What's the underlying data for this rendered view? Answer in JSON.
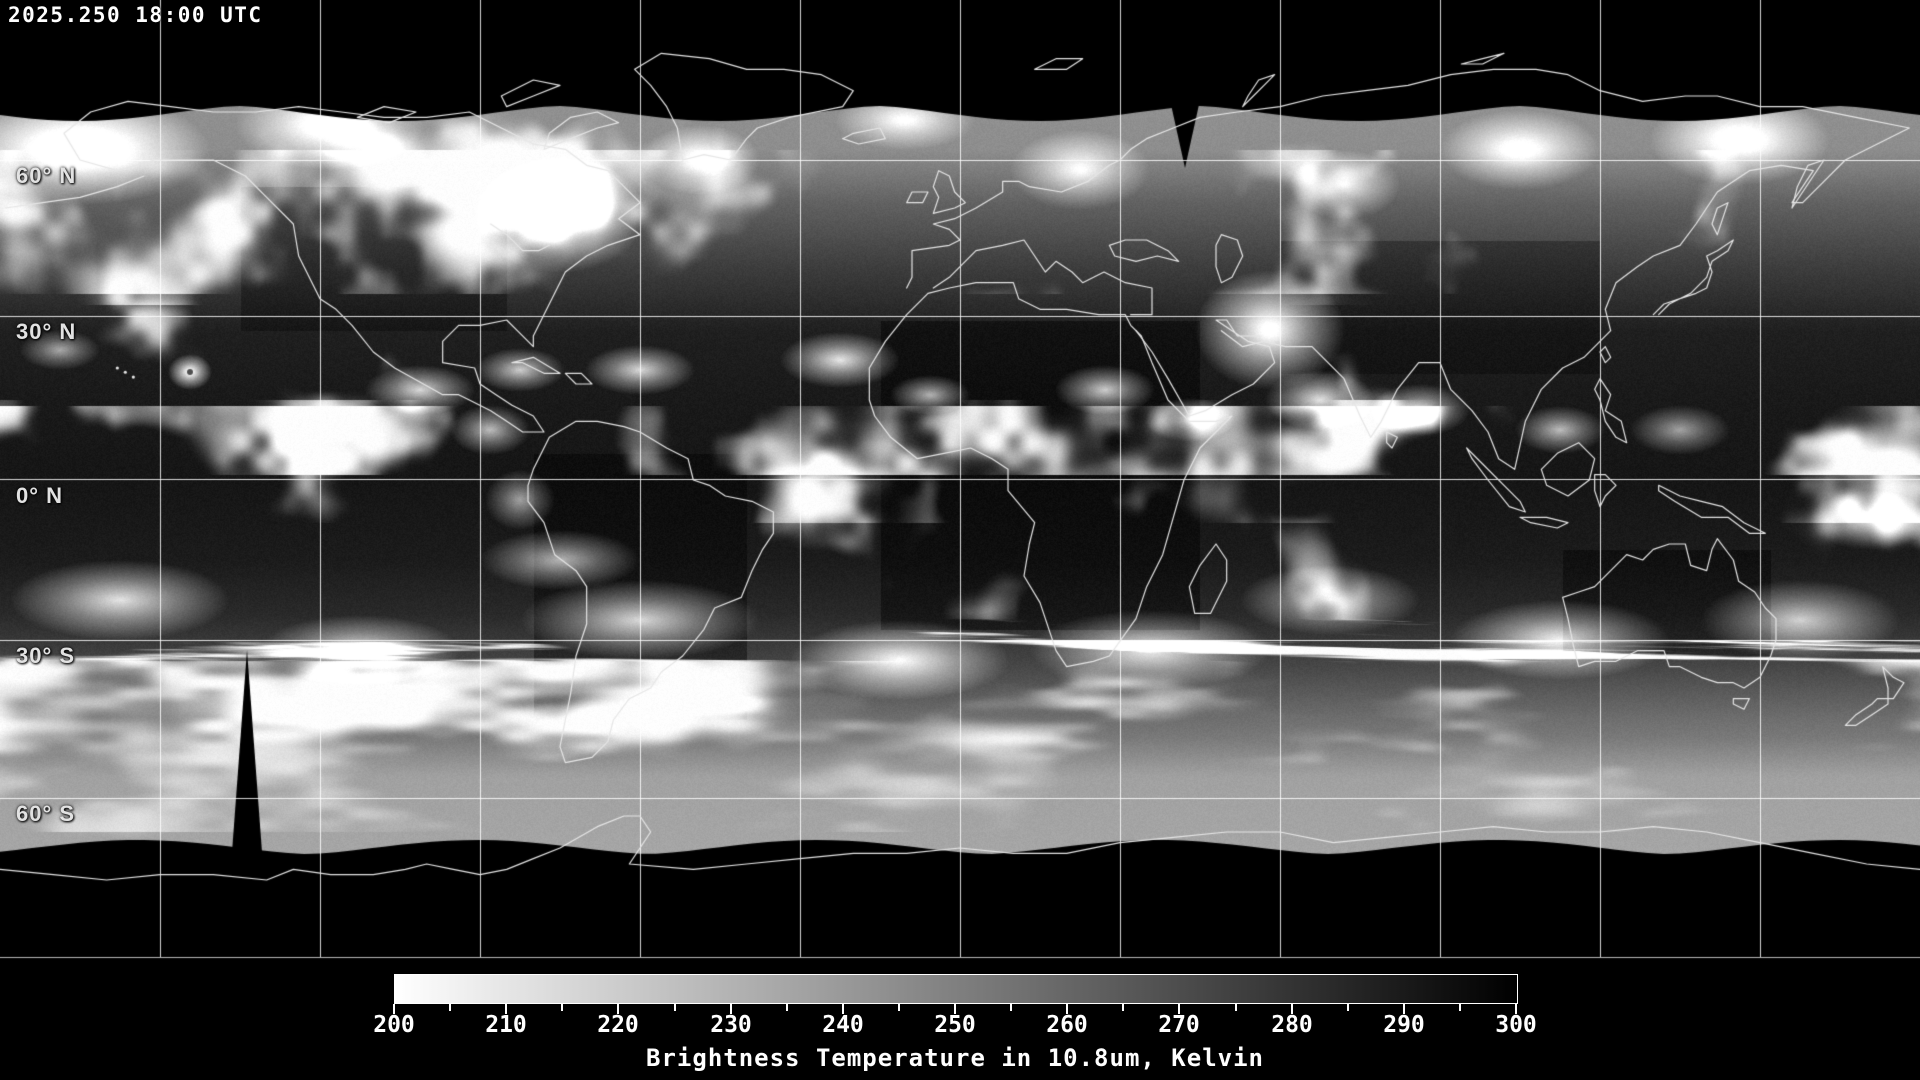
{
  "header": {
    "timestamp": "2025.250 18:00 UTC"
  },
  "map": {
    "lat_labels": [
      {
        "text": "60° N"
      },
      {
        "text": "30° N"
      },
      {
        "text": "0° N"
      },
      {
        "text": "30° S"
      },
      {
        "text": "60° S"
      }
    ]
  },
  "colorbar": {
    "title": "Brightness Temperature in 10.8um, Kelvin",
    "min_value": 200,
    "max_value": 300,
    "minor_tick_step_kelvin": 5,
    "major_tick_labels": [
      "200",
      "210",
      "220",
      "230",
      "240",
      "250",
      "260",
      "270",
      "280",
      "290",
      "300"
    ],
    "gradient_left_color": "#ffffff",
    "gradient_right_color": "#000000",
    "units": "Kelvin",
    "wavelength": "10.8um"
  }
}
